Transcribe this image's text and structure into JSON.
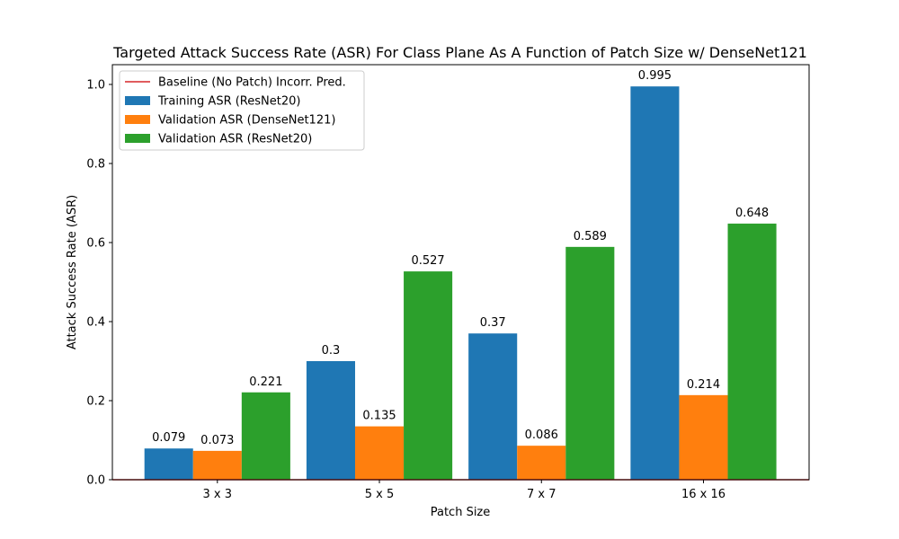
{
  "chart_data": {
    "type": "bar",
    "title": "Targeted Attack Success Rate (ASR) For Class Plane As A Function of Patch Size w/ DenseNet121",
    "xlabel": "Patch Size",
    "ylabel": "Attack Success Rate (ASR)",
    "categories": [
      "3 x 3",
      "5 x 5",
      "7 x 7",
      "16 x 16"
    ],
    "ylim": [
      0,
      1.05
    ],
    "yticks": [
      "0.0",
      "0.2",
      "0.4",
      "0.6",
      "0.8",
      "1.0"
    ],
    "ytick_values": [
      0,
      0.2,
      0.4,
      0.6,
      0.8,
      1.0
    ],
    "legend_position": "upper-left",
    "grid": false,
    "baseline": {
      "name": "Baseline (No Patch) Incorr. Pred.",
      "value": 0,
      "color": "#d62728"
    },
    "series": [
      {
        "name": "Training ASR (ResNet20)",
        "color": "#1f77b4",
        "values": [
          0.079,
          0.3,
          0.37,
          0.995
        ],
        "labels": [
          "0.079",
          "0.3",
          "0.37",
          "0.995"
        ]
      },
      {
        "name": "Validation ASR (DenseNet121)",
        "color": "#ff7f0e",
        "values": [
          0.073,
          0.135,
          0.086,
          0.214
        ],
        "labels": [
          "0.073",
          "0.135",
          "0.086",
          "0.214"
        ]
      },
      {
        "name": "Validation ASR (ResNet20)",
        "color": "#2ca02c",
        "values": [
          0.221,
          0.527,
          0.589,
          0.648
        ],
        "labels": [
          "0.221",
          "0.527",
          "0.589",
          "0.648"
        ]
      }
    ]
  }
}
